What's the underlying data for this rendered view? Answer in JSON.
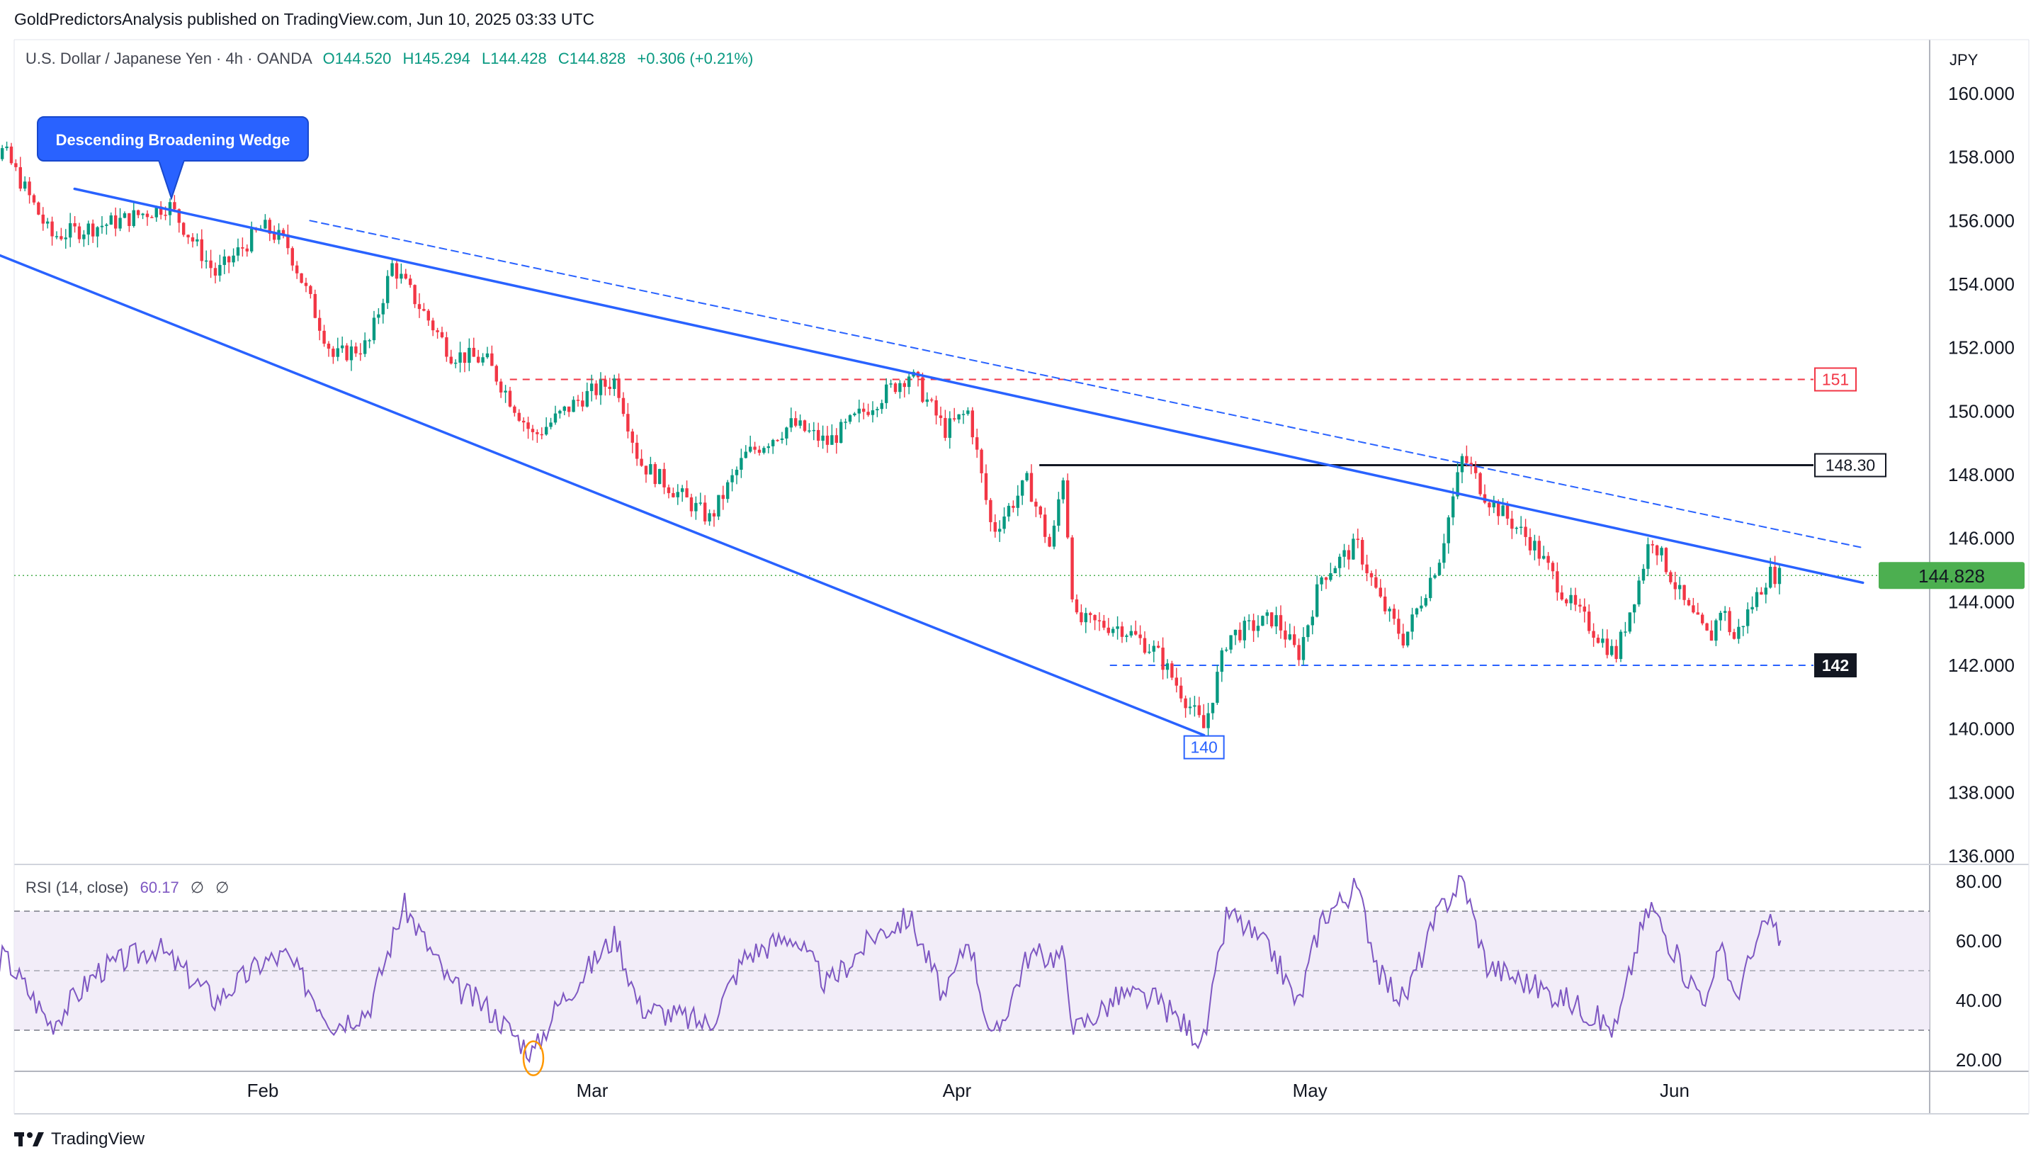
{
  "header": {
    "publisher": "GoldPredictorsAnalysis published on TradingView.com, Jun 10, 2025 03:33 UTC",
    "symbol": "U.S. Dollar / Japanese Yen · 4h · OANDA",
    "open": "O144.520",
    "high": "H145.294",
    "low": "L144.428",
    "close": "C144.828",
    "change": "+0.306 (+0.21%)",
    "currency": "JPY"
  },
  "rsi_legend": {
    "label": "RSI (14, close)",
    "value": "60.17",
    "na1": "∅",
    "na2": "∅"
  },
  "brand": {
    "name": "TradingView",
    "icon": "tradingview-logo-icon"
  },
  "colors": {
    "up": "#089981",
    "down": "#f23645",
    "trend": "#2962ff",
    "rsi": "#7e57c2",
    "resistance": "#f23645",
    "neckline": "#131722",
    "last_price": "#4caf50"
  },
  "chart_data": [
    {
      "type": "candlestick",
      "title": "U.S. Dollar / Japanese Yen",
      "timeframe": "4h",
      "x_ticks": [
        "Feb",
        "Mar",
        "Apr",
        "May",
        "Jun"
      ],
      "y_ticks": [
        "160.000",
        "158.000",
        "156.000",
        "154.000",
        "152.000",
        "150.000",
        "148.000",
        "146.000",
        "144.000",
        "142.000",
        "140.000",
        "138.000",
        "136.000"
      ],
      "ylim": [
        135.5,
        161.5
      ],
      "last_price": 144.828,
      "last_price_label": "144.828",
      "price_path": [
        {
          "t": "Jan 06",
          "price": 157.6
        },
        {
          "t": "Jan 10",
          "price": 158.2
        },
        {
          "t": "Jan 14",
          "price": 155.5
        },
        {
          "t": "Jan 20",
          "price": 156.0
        },
        {
          "t": "Jan 24",
          "price": 156.5
        },
        {
          "t": "Jan 28",
          "price": 154.3
        },
        {
          "t": "Feb 01",
          "price": 155.8
        },
        {
          "t": "Feb 03",
          "price": 155.3
        },
        {
          "t": "Feb 07",
          "price": 151.7
        },
        {
          "t": "Feb 10",
          "price": 152.1
        },
        {
          "t": "Feb 12",
          "price": 154.6
        },
        {
          "t": "Feb 17",
          "price": 151.8
        },
        {
          "t": "Feb 20",
          "price": 151.6
        },
        {
          "t": "Feb 24",
          "price": 149.2
        },
        {
          "t": "Feb 28",
          "price": 150.4
        },
        {
          "t": "Mar 03",
          "price": 151.0
        },
        {
          "t": "Mar 05",
          "price": 148.4
        },
        {
          "t": "Mar 11",
          "price": 146.6
        },
        {
          "t": "Mar 14",
          "price": 148.6
        },
        {
          "t": "Mar 18",
          "price": 149.6
        },
        {
          "t": "Mar 21",
          "price": 149.0
        },
        {
          "t": "Mar 25",
          "price": 150.3
        },
        {
          "t": "Mar 28",
          "price": 151.2
        },
        {
          "t": "Mar 31",
          "price": 149.4
        },
        {
          "t": "Apr 02",
          "price": 150.0
        },
        {
          "t": "Apr 04",
          "price": 146.2
        },
        {
          "t": "Apr 07",
          "price": 147.8
        },
        {
          "t": "Apr 09",
          "price": 145.6
        },
        {
          "t": "Apr 10",
          "price": 148.1
        },
        {
          "t": "Apr 11",
          "price": 143.4
        },
        {
          "t": "Apr 15",
          "price": 143.2
        },
        {
          "t": "Apr 18",
          "price": 142.4
        },
        {
          "t": "Apr 22",
          "price": 140.0
        },
        {
          "t": "Apr 24",
          "price": 142.9
        },
        {
          "t": "Apr 28",
          "price": 143.5
        },
        {
          "t": "Apr 30",
          "price": 142.3
        },
        {
          "t": "May 02",
          "price": 144.8
        },
        {
          "t": "May 05",
          "price": 145.8
        },
        {
          "t": "May 07",
          "price": 144.0
        },
        {
          "t": "May 09",
          "price": 142.8
        },
        {
          "t": "May 12",
          "price": 145.4
        },
        {
          "t": "May 14",
          "price": 148.6
        },
        {
          "t": "May 16",
          "price": 147.3
        },
        {
          "t": "May 20",
          "price": 145.8
        },
        {
          "t": "May 23",
          "price": 144.0
        },
        {
          "t": "May 27",
          "price": 142.3
        },
        {
          "t": "May 29",
          "price": 144.7
        },
        {
          "t": "May 30",
          "price": 146.1
        },
        {
          "t": "Jun 02",
          "price": 143.8
        },
        {
          "t": "Jun 04",
          "price": 142.8
        },
        {
          "t": "Jun 05",
          "price": 143.9
        },
        {
          "t": "Jun 06",
          "price": 142.8
        },
        {
          "t": "Jun 09",
          "price": 144.9
        },
        {
          "t": "Jun 10",
          "price": 144.8
        }
      ],
      "annotations": {
        "pattern_label": "Descending Broadening Wedge",
        "upper_trendline": [
          {
            "t": "Jan 16",
            "price": 157.0
          },
          {
            "t": "Jun 17",
            "price": 144.6
          }
        ],
        "upper_trendline_dashed": [
          {
            "t": "Feb 05",
            "price": 156.0
          },
          {
            "t": "Jun 17",
            "price": 145.7
          }
        ],
        "lower_trendline": [
          {
            "t": "Jan 09",
            "price": 155.0
          },
          {
            "t": "Apr 22",
            "price": 139.8
          }
        ],
        "levels": [
          {
            "price": 151.0,
            "label": "151",
            "style": "dashed",
            "color": "#f23645",
            "from": "Feb 22"
          },
          {
            "price": 148.3,
            "label": "148.30",
            "style": "solid",
            "color": "#131722",
            "from": "Apr 08"
          },
          {
            "price": 142.0,
            "label": "142",
            "style": "dashed",
            "color": "#2962ff",
            "from": "Apr 14"
          }
        ],
        "low_label": "140",
        "low_point": {
          "t": "Apr 22",
          "price": 140.0
        }
      }
    },
    {
      "type": "line",
      "title": "RSI (14, close)",
      "y_ticks": [
        "80.00",
        "60.00",
        "40.00",
        "20.00"
      ],
      "ylim": [
        18,
        83
      ],
      "band": [
        30,
        70
      ],
      "midline": 50,
      "last_value": 60.17,
      "rsi_path": [
        {
          "t": "Jan 06",
          "v": 45
        },
        {
          "t": "Jan 10",
          "v": 55
        },
        {
          "t": "Jan 14",
          "v": 32
        },
        {
          "t": "Jan 18",
          "v": 50
        },
        {
          "t": "Jan 23",
          "v": 58
        },
        {
          "t": "Jan 28",
          "v": 40
        },
        {
          "t": "Feb 01",
          "v": 53
        },
        {
          "t": "Feb 03",
          "v": 55
        },
        {
          "t": "Feb 07",
          "v": 32
        },
        {
          "t": "Feb 10",
          "v": 37
        },
        {
          "t": "Feb 13",
          "v": 72
        },
        {
          "t": "Feb 17",
          "v": 45
        },
        {
          "t": "Feb 20",
          "v": 38
        },
        {
          "t": "Feb 24",
          "v": 22
        },
        {
          "t": "Feb 26",
          "v": 38
        },
        {
          "t": "Mar 03",
          "v": 62
        },
        {
          "t": "Mar 05",
          "v": 38
        },
        {
          "t": "Mar 11",
          "v": 32
        },
        {
          "t": "Mar 14",
          "v": 55
        },
        {
          "t": "Mar 18",
          "v": 62
        },
        {
          "t": "Mar 21",
          "v": 45
        },
        {
          "t": "Mar 25",
          "v": 62
        },
        {
          "t": "Mar 28",
          "v": 68
        },
        {
          "t": "Mar 31",
          "v": 40
        },
        {
          "t": "Apr 02",
          "v": 62
        },
        {
          "t": "Apr 04",
          "v": 25
        },
        {
          "t": "Apr 07",
          "v": 55
        },
        {
          "t": "Apr 10",
          "v": 55
        },
        {
          "t": "Apr 11",
          "v": 30
        },
        {
          "t": "Apr 15",
          "v": 42
        },
        {
          "t": "Apr 18",
          "v": 40
        },
        {
          "t": "Apr 22",
          "v": 26
        },
        {
          "t": "Apr 24",
          "v": 70
        },
        {
          "t": "Apr 28",
          "v": 55
        },
        {
          "t": "Apr 30",
          "v": 38
        },
        {
          "t": "May 02",
          "v": 68
        },
        {
          "t": "May 05",
          "v": 78
        },
        {
          "t": "May 07",
          "v": 48
        },
        {
          "t": "May 09",
          "v": 40
        },
        {
          "t": "May 12",
          "v": 70
        },
        {
          "t": "May 14",
          "v": 81
        },
        {
          "t": "May 16",
          "v": 52
        },
        {
          "t": "May 20",
          "v": 45
        },
        {
          "t": "May 23",
          "v": 40
        },
        {
          "t": "May 27",
          "v": 30
        },
        {
          "t": "May 29",
          "v": 62
        },
        {
          "t": "May 30",
          "v": 72
        },
        {
          "t": "Jun 02",
          "v": 48
        },
        {
          "t": "Jun 04",
          "v": 40
        },
        {
          "t": "Jun 05",
          "v": 62
        },
        {
          "t": "Jun 06",
          "v": 40
        },
        {
          "t": "Jun 09",
          "v": 68
        },
        {
          "t": "Jun 10",
          "v": 60.17
        }
      ],
      "oversold_marker": {
        "t": "Feb 24",
        "v": 22
      }
    }
  ]
}
